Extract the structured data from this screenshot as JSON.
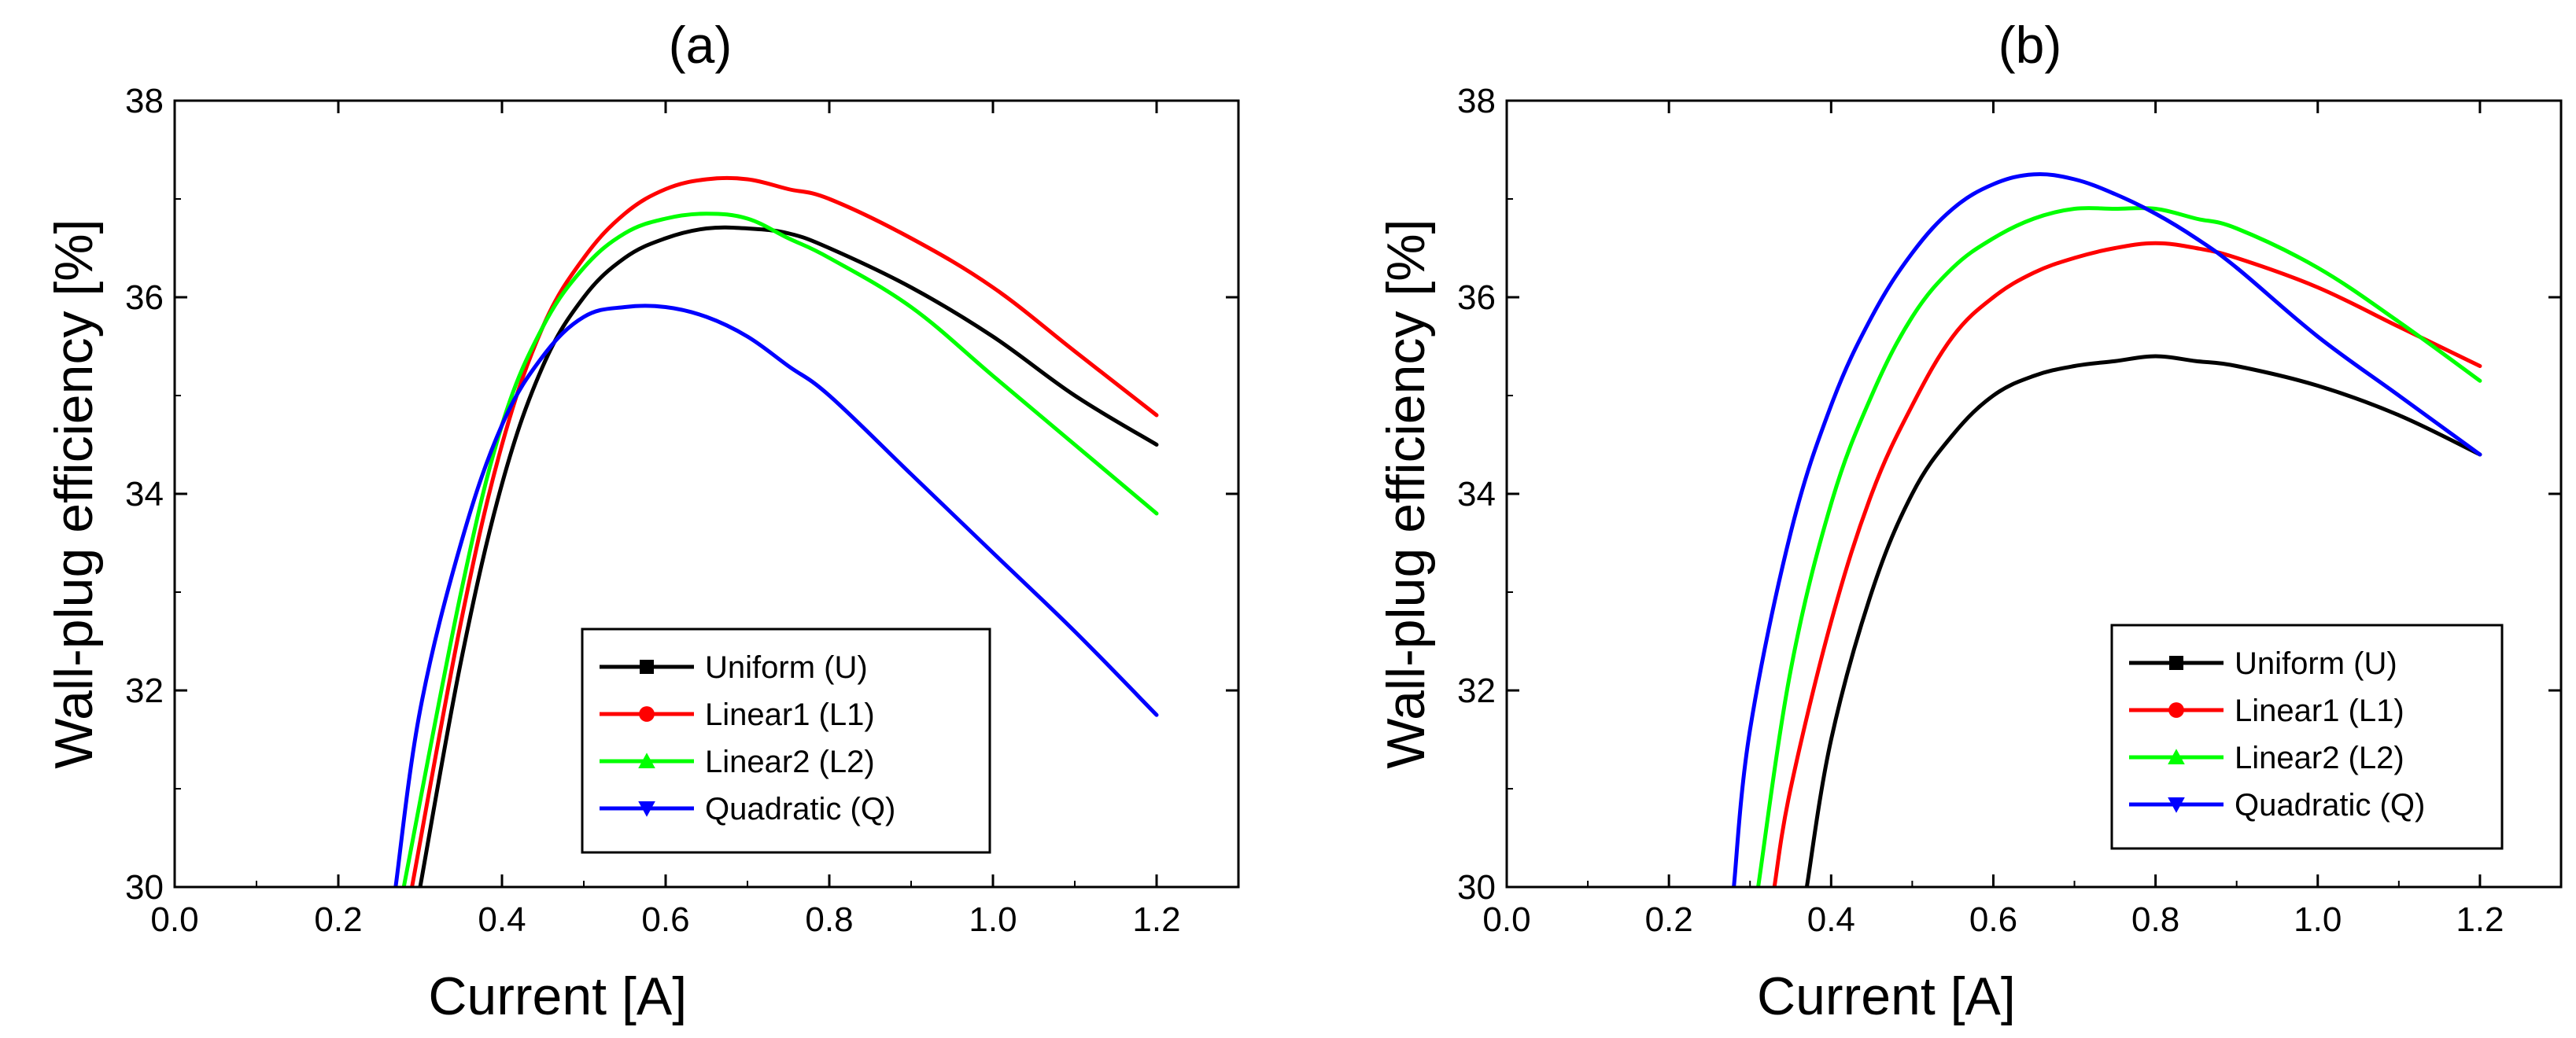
{
  "chart_data": [
    {
      "type": "line",
      "title": "(a)",
      "xlabel": "Current [A]",
      "ylabel": "Wall-plug efficiency [%]",
      "xlim": [
        0.0,
        1.3
      ],
      "ylim": [
        30,
        38
      ],
      "xticks": [
        0.0,
        0.2,
        0.4,
        0.6,
        0.8,
        1.0,
        1.2
      ],
      "yticks": [
        30,
        32,
        34,
        36,
        38
      ],
      "xtick_labels": [
        "0.0",
        "0.2",
        "0.4",
        "0.6",
        "0.8",
        "1.0",
        "1.2"
      ],
      "ytick_labels": [
        "30",
        "32",
        "34",
        "36",
        "38"
      ],
      "legend_position": "bottom-right",
      "series": [
        {
          "name": "Uniform (U)",
          "color": "#000000",
          "marker": "square",
          "x": [
            0.3,
            0.35,
            0.4,
            0.45,
            0.5,
            0.55,
            0.6,
            0.65,
            0.7,
            0.75,
            0.8,
            0.9,
            1.0,
            1.1,
            1.2
          ],
          "y": [
            30.0,
            32.3,
            34.1,
            35.3,
            36.0,
            36.4,
            36.6,
            36.7,
            36.7,
            36.65,
            36.5,
            36.1,
            35.6,
            35.0,
            34.5
          ]
        },
        {
          "name": "Linear1 (L1)",
          "color": "#ff0000",
          "marker": "circle",
          "x": [
            0.29,
            0.35,
            0.4,
            0.45,
            0.5,
            0.55,
            0.6,
            0.65,
            0.7,
            0.75,
            0.8,
            0.9,
            1.0,
            1.1,
            1.2
          ],
          "y": [
            30.0,
            32.7,
            34.5,
            35.7,
            36.4,
            36.85,
            37.1,
            37.2,
            37.2,
            37.1,
            37.0,
            36.6,
            36.1,
            35.45,
            34.8
          ]
        },
        {
          "name": "Linear2 (L2)",
          "color": "#00ff00",
          "marker": "triangle-up",
          "x": [
            0.28,
            0.35,
            0.4,
            0.45,
            0.5,
            0.55,
            0.6,
            0.65,
            0.7,
            0.75,
            0.8,
            0.9,
            1.0,
            1.1,
            1.2
          ],
          "y": [
            30.0,
            33.0,
            34.7,
            35.7,
            36.3,
            36.65,
            36.8,
            36.85,
            36.8,
            36.6,
            36.4,
            35.9,
            35.2,
            34.5,
            33.8
          ]
        },
        {
          "name": "Quadratic (Q)",
          "color": "#0000ff",
          "marker": "triangle-down",
          "x": [
            0.27,
            0.3,
            0.35,
            0.4,
            0.45,
            0.5,
            0.55,
            0.6,
            0.65,
            0.7,
            0.75,
            0.8,
            0.9,
            1.0,
            1.1,
            1.2
          ],
          "y": [
            30.0,
            31.8,
            33.5,
            34.7,
            35.4,
            35.8,
            35.9,
            35.9,
            35.8,
            35.6,
            35.3,
            35.0,
            34.2,
            33.4,
            32.6,
            31.75
          ]
        }
      ]
    },
    {
      "type": "line",
      "title": "(b)",
      "xlabel": "Current [A]",
      "ylabel": "Wall-plug efficiency [%]",
      "xlim": [
        0.0,
        1.3
      ],
      "ylim": [
        30,
        38
      ],
      "xticks": [
        0.0,
        0.2,
        0.4,
        0.6,
        0.8,
        1.0,
        1.2
      ],
      "yticks": [
        30,
        32,
        34,
        36,
        38
      ],
      "xtick_labels": [
        "0.0",
        "0.2",
        "0.4",
        "0.6",
        "0.8",
        "1.0",
        "1.2"
      ],
      "ytick_labels": [
        "30",
        "32",
        "34",
        "36",
        "38"
      ],
      "legend_position": "bottom-right",
      "series": [
        {
          "name": "Uniform (U)",
          "color": "#000000",
          "marker": "square",
          "x": [
            0.37,
            0.4,
            0.45,
            0.5,
            0.55,
            0.6,
            0.65,
            0.7,
            0.75,
            0.8,
            0.85,
            0.9,
            1.0,
            1.1,
            1.2
          ],
          "y": [
            30.0,
            31.5,
            33.0,
            34.0,
            34.6,
            35.0,
            35.2,
            35.3,
            35.35,
            35.4,
            35.35,
            35.3,
            35.1,
            34.8,
            34.4
          ]
        },
        {
          "name": "Linear1 (L1)",
          "color": "#ff0000",
          "marker": "circle",
          "x": [
            0.33,
            0.35,
            0.4,
            0.45,
            0.5,
            0.55,
            0.6,
            0.65,
            0.7,
            0.75,
            0.8,
            0.85,
            0.9,
            1.0,
            1.1,
            1.2
          ],
          "y": [
            30.0,
            31.0,
            32.7,
            34.0,
            34.9,
            35.6,
            36.0,
            36.25,
            36.4,
            36.5,
            36.55,
            36.5,
            36.4,
            36.1,
            35.7,
            35.3
          ]
        },
        {
          "name": "Linear2 (L2)",
          "color": "#00ff00",
          "marker": "triangle-up",
          "x": [
            0.31,
            0.35,
            0.4,
            0.45,
            0.5,
            0.55,
            0.6,
            0.65,
            0.7,
            0.75,
            0.8,
            0.85,
            0.9,
            1.0,
            1.1,
            1.2
          ],
          "y": [
            30.0,
            32.2,
            33.9,
            35.0,
            35.8,
            36.3,
            36.6,
            36.8,
            36.9,
            36.9,
            36.9,
            36.8,
            36.7,
            36.3,
            35.75,
            35.15
          ]
        },
        {
          "name": "Quadratic (Q)",
          "color": "#0000ff",
          "marker": "triangle-down",
          "x": [
            0.28,
            0.3,
            0.35,
            0.4,
            0.45,
            0.5,
            0.55,
            0.6,
            0.65,
            0.7,
            0.75,
            0.8,
            0.85,
            0.9,
            1.0,
            1.1,
            1.2
          ],
          "y": [
            30.0,
            31.6,
            33.6,
            34.9,
            35.8,
            36.45,
            36.9,
            37.15,
            37.25,
            37.2,
            37.05,
            36.85,
            36.6,
            36.3,
            35.6,
            35.0,
            34.4
          ]
        }
      ]
    }
  ]
}
